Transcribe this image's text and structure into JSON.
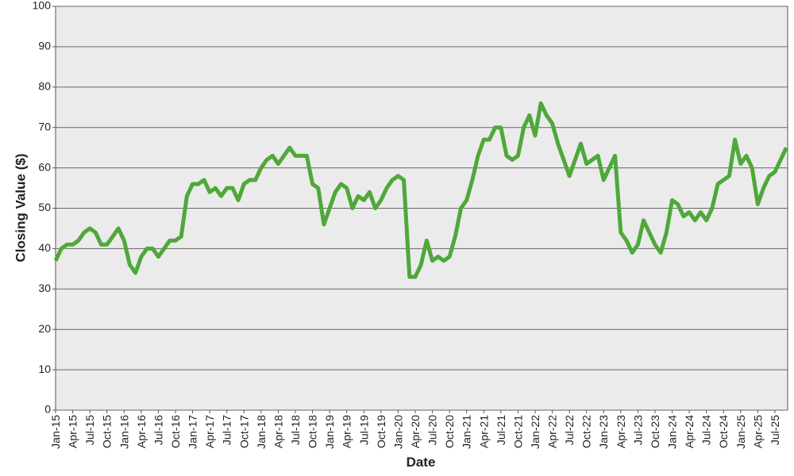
{
  "chart_data": {
    "type": "line",
    "x_label": "Date",
    "y_label": "Closing Value ($)",
    "categories": [
      "Jan-15",
      null,
      null,
      "Apr-15",
      null,
      null,
      "Jul-15",
      null,
      null,
      "Oct-15",
      null,
      null,
      "Jan-16",
      null,
      null,
      "Apr-16",
      null,
      null,
      "Jul-16",
      null,
      null,
      "Oct-16",
      null,
      null,
      "Jan-17",
      null,
      null,
      "Apr-17",
      null,
      null,
      "Jul-17",
      null,
      null,
      "Oct-17",
      null,
      null,
      "Jan-18",
      null,
      null,
      "Apr-18",
      null,
      null,
      "Jul-18",
      null,
      null,
      "Oct-18",
      null,
      null,
      "Jan-19",
      null,
      null,
      "Apr-19",
      null,
      null,
      "Jul-19",
      null,
      null,
      "Oct-19",
      null,
      null,
      "Jan-20",
      null,
      null,
      "Apr-20",
      null,
      null,
      "Jul-20",
      null,
      null,
      "Oct-20",
      null,
      null,
      "Jan-21",
      null,
      null,
      "Apr-21",
      null,
      null,
      "Jul-21",
      null,
      null,
      "Oct-21",
      null,
      null,
      "Jan-22",
      null,
      null,
      "Apr-22",
      null,
      null,
      "Jul-22",
      null,
      null,
      "Oct-22",
      null,
      null,
      "Jan-23",
      null,
      null,
      "Apr-23",
      null,
      null,
      "Jul-23",
      null,
      null,
      "Oct-23",
      null,
      null,
      "Jan-24",
      null,
      null,
      "Apr-24",
      null,
      null,
      "Jul-24",
      null,
      null,
      "Oct-24",
      null,
      null,
      "Jan-25",
      null,
      null,
      "Apr-25",
      null,
      null,
      "Jul-25",
      null,
      null
    ],
    "series": [
      {
        "name": "Closing Value",
        "color": "#4ea83a",
        "values": [
          37,
          40,
          41,
          41,
          42,
          44,
          45,
          44,
          41,
          41,
          43,
          45,
          42,
          36,
          34,
          38,
          40,
          40,
          38,
          40,
          42,
          42,
          43,
          53,
          56,
          56,
          57,
          54,
          55,
          53,
          55,
          55,
          52,
          56,
          57,
          57,
          60,
          62,
          63,
          61,
          63,
          65,
          63,
          63,
          63,
          56,
          55,
          46,
          50,
          54,
          56,
          55,
          50,
          53,
          52,
          54,
          50,
          52,
          55,
          57,
          58,
          57,
          33,
          33,
          36,
          42,
          37,
          38,
          37,
          38,
          43,
          50,
          52,
          57,
          63,
          67,
          67,
          70,
          70,
          63,
          62,
          63,
          70,
          73,
          68,
          76,
          73,
          71,
          66,
          62,
          58,
          62,
          66,
          61,
          62,
          63,
          57,
          60,
          63,
          44,
          42,
          39,
          41,
          47,
          44,
          41,
          39,
          44,
          52,
          51,
          48,
          49,
          47,
          49,
          47,
          50,
          56,
          57,
          58,
          67,
          61,
          63,
          60,
          51,
          55,
          58,
          59,
          62,
          65
        ]
      }
    ],
    "ylim": [
      0,
      100
    ],
    "yticks": [
      0,
      10,
      20,
      30,
      40,
      50,
      60,
      70,
      80,
      90,
      100
    ],
    "grid": true
  }
}
